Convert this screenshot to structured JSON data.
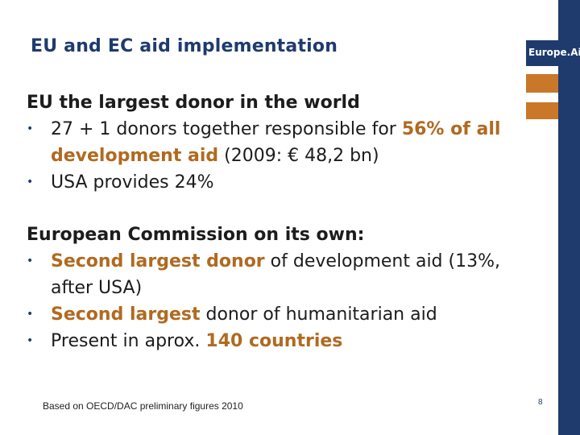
{
  "slide": {
    "title": "EU and EC aid implementation",
    "brand": "Europe.Aid",
    "section1": {
      "heading": "EU the largest donor in the world",
      "bullets": [
        {
          "parts": [
            "27 + 1 donors together responsible for ",
            "56% of all development aid",
            " (2009: € 48,2 bn)"
          ]
        },
        {
          "text": "USA provides 24%"
        }
      ]
    },
    "section2": {
      "heading": "European Commission on its own:",
      "bullets": [
        {
          "parts": [
            "Second largest donor",
            " of development aid (13%, after USA)"
          ]
        },
        {
          "parts": [
            "Second largest",
            " donor of humanitarian aid"
          ]
        },
        {
          "parts": [
            "Present in aprox. ",
            "140 countries"
          ]
        }
      ]
    },
    "footnote": "Based on OECD/DAC preliminary figures 2010",
    "page_number": "8"
  },
  "colors": {
    "brand_blue": "#1f3b6e",
    "accent_orange": "#c87828",
    "highlight_text": "#b06a20"
  }
}
